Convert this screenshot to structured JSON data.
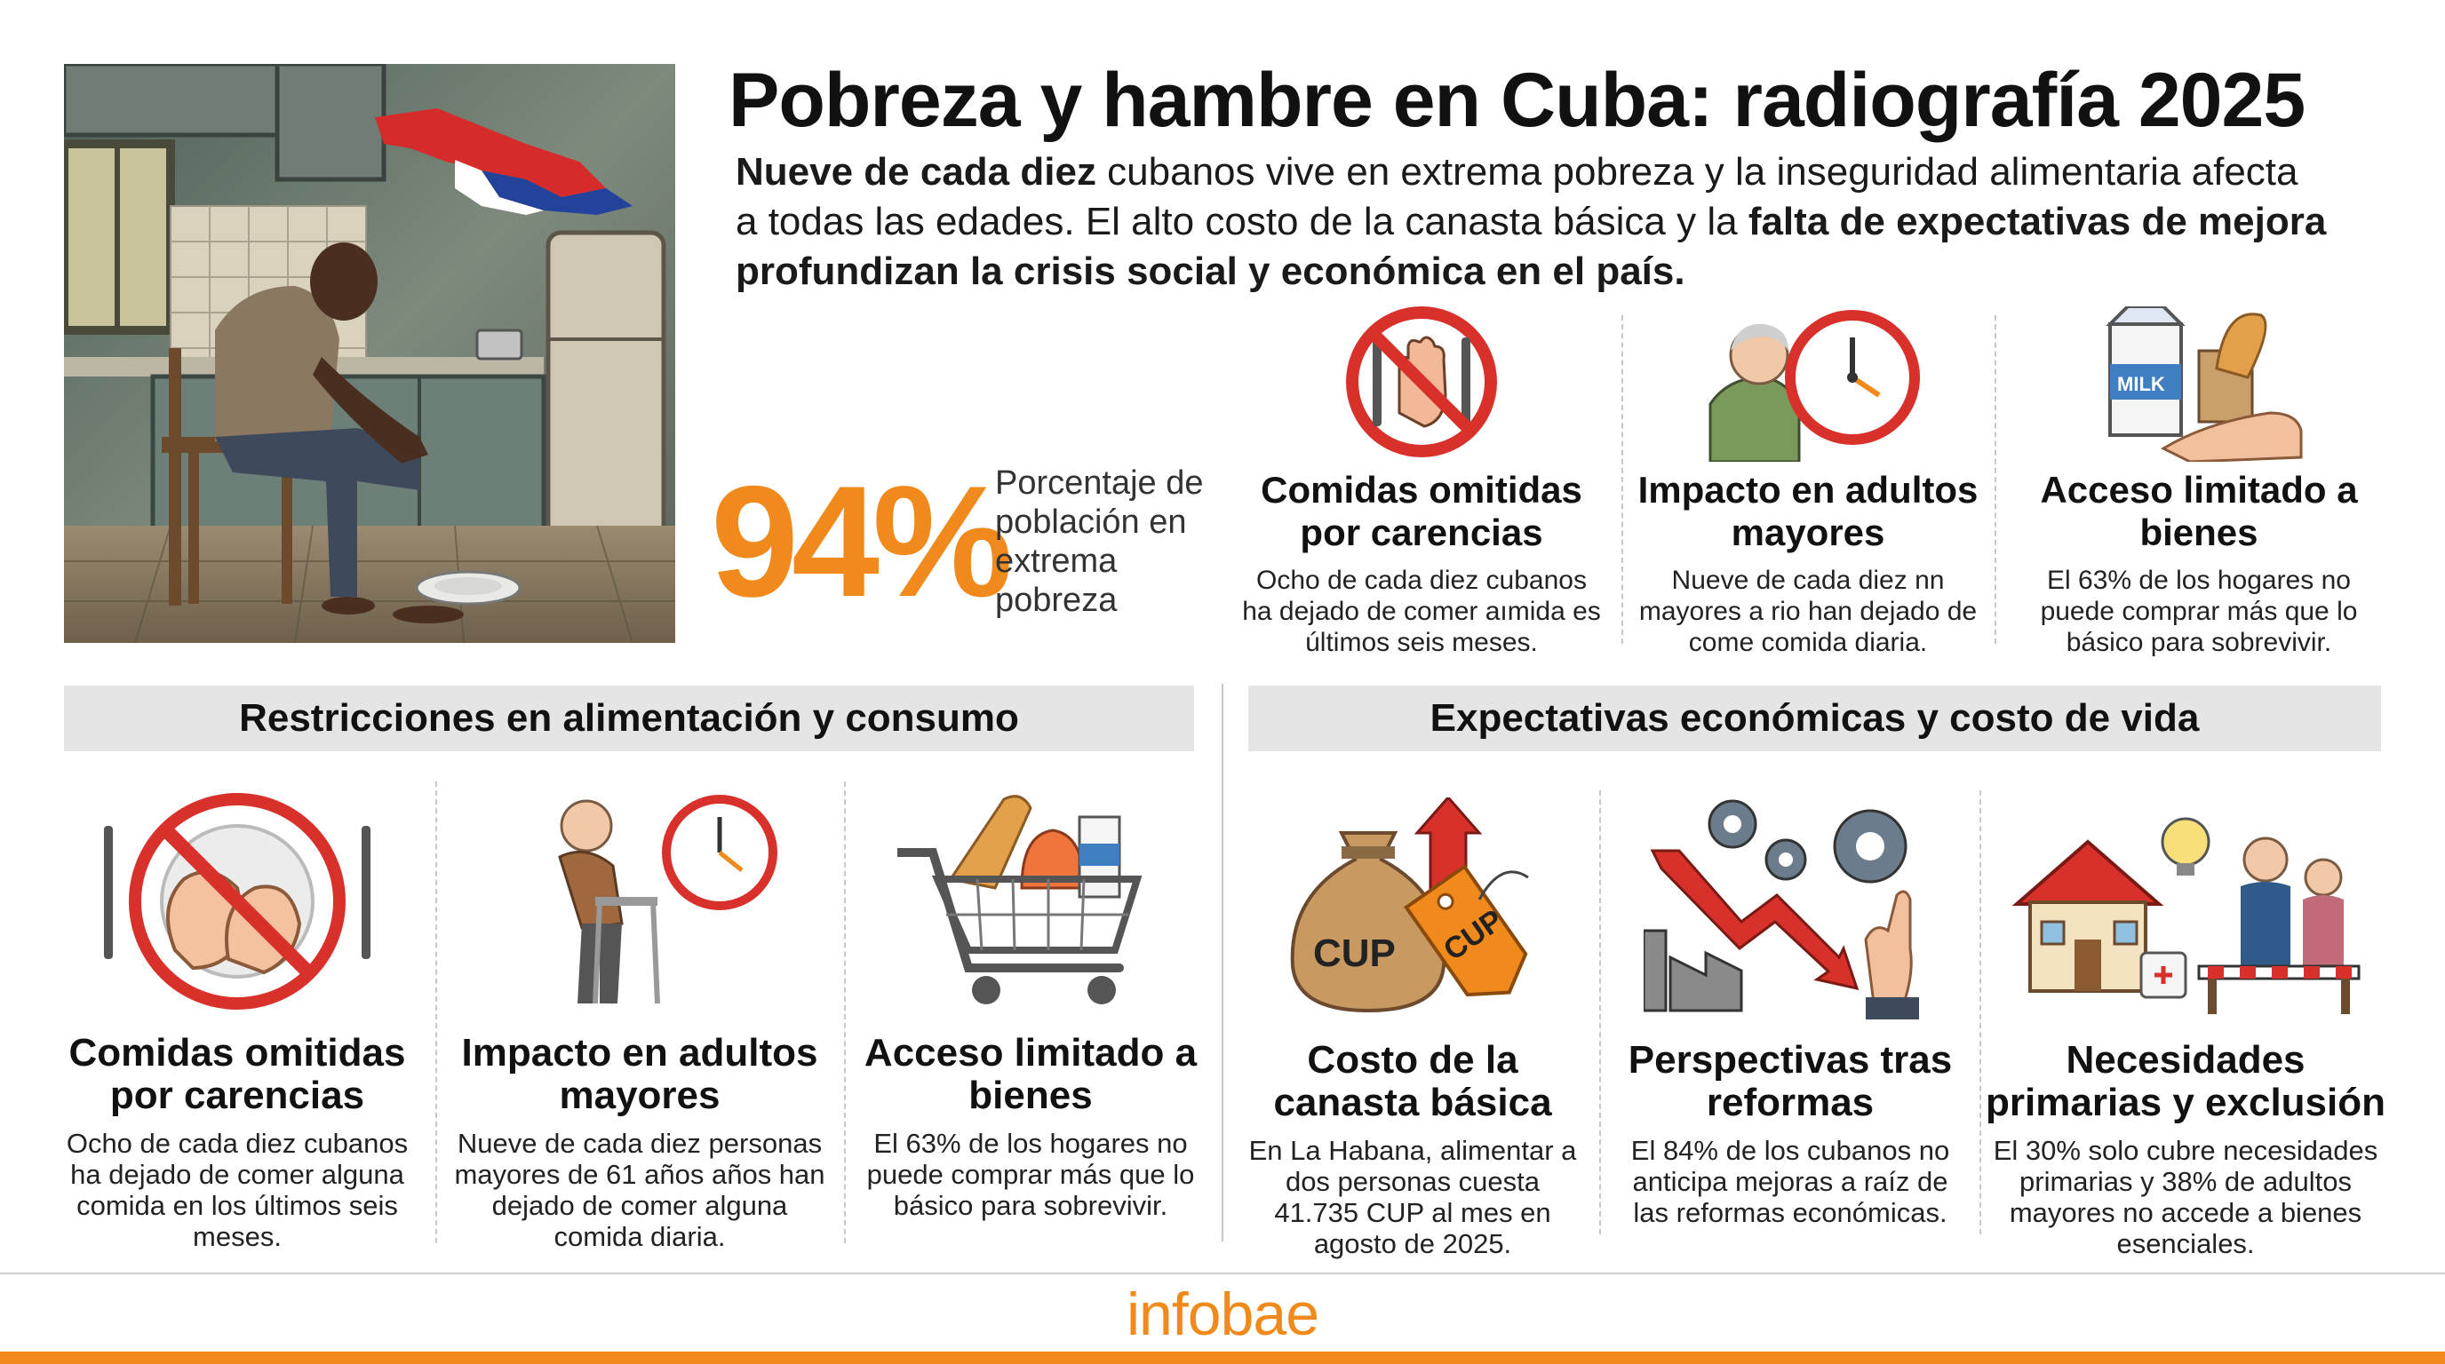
{
  "header": {
    "title": "Pobreza y hambre en Cuba: radiografía 2025",
    "lead_1_bold": "Nueve de cada diez",
    "lead_1_rest": " cubanos vive en extrema pobreza y la inseguridad alimentaria afecta",
    "lead_2_start": "a todas las edades. El alto costo de la canasta básica y la ",
    "lead_2_bold": "falta de expectativas de mejora",
    "lead_3_bold": "profundizan la crisis social y económica en el país."
  },
  "stat": {
    "value": "94%",
    "label": "Porcentaje de población en extrema pobreza"
  },
  "top_cards": [
    {
      "title": "Comidas omitidas por carencias",
      "text": "Ocho de cada diez cubanos ha dejado de comer aımida es últimos seis meses.",
      "icon": "no-eating-icon"
    },
    {
      "title": "Impacto en adultos mayores",
      "text": "Nueve de cada diez nn mayores a rio han dejado de come comida diaria.",
      "icon": "elderly-clock-icon"
    },
    {
      "title": "Acceso limitado a bienes",
      "text": "El 63% de los hogares no puede comprar más que lo básico para sobrevivir.",
      "icon": "milk-bread-icon"
    }
  ],
  "sections": {
    "left": "Restricciones en alimentación y consumo",
    "right": "Expectativas económicas y costo de vida"
  },
  "bottom_cards": [
    {
      "title": "Comidas omitidas por carencias",
      "text": "Ocho de cada diez cubanos ha dejado de comer alguna comida en los últimos seis meses.",
      "icon": "no-eating-icon"
    },
    {
      "title": "Impacto en adultos mayores",
      "text": "Nueve de cada diez personas mayores de 61 años años han dejado de comer alguna comida diaria.",
      "icon": "elderly-walker-icon"
    },
    {
      "title": "Acceso limitado a bienes",
      "text": "El 63% de los hogares no puede comprar más que lo básico para sobrevivir.",
      "icon": "shopping-cart-icon"
    },
    {
      "title": "Costo de la canasta básica",
      "text": "En La Habana, alimentar a dos personas cuesta 41.735 CUP al mes en agosto de 2025.",
      "icon": "money-bag-icon",
      "bag_label": "CUP",
      "tag_label": "CUP"
    },
    {
      "title": "Perspectivas tras reformas",
      "text": "El 84% de los cubanos no anticipa mejoras a raíz de las reformas económicas.",
      "icon": "falling-arrow-gears-icon"
    },
    {
      "title": "Necesidades primarias y exclusión",
      "text": "El 30% solo cubre necesidades primarias y 38% de adultos mayores no accede a bienes esenciales.",
      "icon": "house-family-icon"
    }
  ],
  "footer": {
    "logo": "infobae"
  },
  "colors": {
    "accent": "#f08a1c",
    "red": "#d8312b",
    "bar": "#e5e5e5"
  }
}
